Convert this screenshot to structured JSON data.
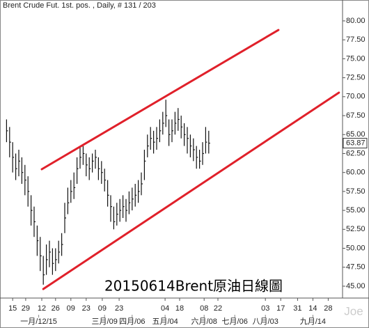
{
  "chart_data": {
    "type": "ohlc",
    "title": "Brent Crude Fut. 1st. pos. , Daily, # 131 / 203",
    "annotation": "20150614Brent原油日線圖",
    "watermark": "Joe",
    "color": "#111111",
    "x": [
      2,
      4,
      6,
      8,
      10,
      12,
      14,
      16,
      18,
      20,
      22,
      24,
      26,
      28,
      30,
      32,
      34,
      36,
      38,
      40,
      42,
      44,
      46,
      48,
      50,
      52,
      54,
      56,
      58,
      60,
      62,
      64,
      66,
      68,
      70,
      72,
      74,
      76,
      78,
      80,
      82,
      84,
      86,
      88,
      90,
      92,
      94,
      96,
      98,
      100,
      102,
      104,
      106,
      108,
      110,
      112,
      114,
      116,
      118,
      120,
      122,
      124,
      126,
      128,
      130,
      132,
      134
    ],
    "high": [
      67,
      66,
      64,
      62.5,
      63,
      62,
      61,
      59.5,
      57,
      55.5,
      53,
      51.5,
      49,
      50.5,
      51,
      50,
      50,
      51,
      52,
      56,
      58,
      59,
      60,
      62,
      63.5,
      63.5,
      62.5,
      62,
      62.5,
      63,
      62,
      61.5,
      60.5,
      59,
      57,
      55.5,
      56,
      56.5,
      57,
      56.5,
      57.5,
      58,
      58.5,
      59,
      60,
      63,
      65,
      66,
      65.5,
      66,
      67,
      68,
      69.6,
      67,
      67,
      68,
      68.5,
      67.5,
      66.5,
      66,
      65,
      64.5,
      63.5,
      63,
      64,
      66,
      65.5
    ],
    "low": [
      64,
      62,
      60,
      59,
      59.5,
      58.5,
      57,
      55.5,
      53,
      51.5,
      49,
      47,
      45.2,
      46.5,
      47.5,
      46.5,
      47,
      48,
      49,
      52,
      54.5,
      56,
      56.5,
      58.5,
      60.5,
      61,
      59.5,
      59,
      60,
      60.5,
      59,
      58.5,
      57.5,
      55.5,
      53.5,
      52.5,
      53,
      53.5,
      54,
      53.5,
      54.5,
      55,
      55.5,
      56,
      57,
      59,
      62,
      63,
      62.5,
      63,
      64,
      65,
      66,
      63.5,
      64,
      65,
      65.5,
      64.5,
      63.5,
      62.5,
      62,
      61.5,
      60.5,
      60.5,
      61,
      62.5,
      62.5
    ],
    "close": [
      65.5,
      64,
      62,
      60.5,
      61.5,
      60,
      59,
      57.5,
      55,
      53.5,
      51,
      49,
      46.5,
      48.5,
      49.5,
      48,
      48.5,
      49.5,
      50.5,
      54,
      56,
      57.5,
      58,
      60.5,
      62,
      62.5,
      61,
      60.5,
      61.5,
      62,
      60.5,
      60,
      59,
      57,
      55.5,
      53.5,
      54.5,
      55,
      55.5,
      55,
      56,
      56.5,
      57,
      57.5,
      58.5,
      61.5,
      63.5,
      64.5,
      64,
      64.5,
      65.5,
      66.5,
      67.5,
      65,
      65.5,
      66.5,
      67,
      66,
      65,
      64.5,
      63.5,
      63,
      62,
      61.5,
      62.5,
      64,
      63.87
    ],
    "last_price": 63.87,
    "trendlines": [
      {
        "color": "#e0202a",
        "x": [
          25,
          179.5
        ],
        "y": [
          60.43,
          78.8
        ]
      },
      {
        "color": "#e0202a",
        "x": [
          26,
          219
        ],
        "y": [
          44.63,
          70.54
        ]
      }
    ],
    "xlim": [
      0,
      220.45
    ],
    "ylim": [
      43.71,
      82.57
    ],
    "xticks": [
      {
        "value": 6,
        "label": "15"
      },
      {
        "value": 14.5,
        "label": "29"
      },
      {
        "value": 25,
        "label": "12"
      },
      {
        "value": 34,
        "label": "26"
      },
      {
        "value": 44,
        "label": "09"
      },
      {
        "value": 54,
        "label": "23"
      },
      {
        "value": 64.5,
        "label": "09"
      },
      {
        "value": 75.5,
        "label": "23"
      },
      {
        "value": 105.5,
        "label": "04"
      },
      {
        "value": 115,
        "label": "18"
      },
      {
        "value": 131,
        "label": "08"
      },
      {
        "value": 140,
        "label": "22"
      },
      {
        "value": 171,
        "label": "03"
      },
      {
        "value": 181,
        "label": "17"
      },
      {
        "value": 192,
        "label": "31"
      },
      {
        "value": 202,
        "label": "14"
      },
      {
        "value": 212,
        "label": "28"
      }
    ],
    "xticks_secondary": [
      {
        "value": 23,
        "label": "一月/12/15"
      },
      {
        "value": 66,
        "label": "三月/09"
      },
      {
        "value": 84,
        "label": "四月/06"
      },
      {
        "value": 105.5,
        "label": "五月/04"
      },
      {
        "value": 131,
        "label": "六月/08"
      },
      {
        "value": 151,
        "label": "七月/06"
      },
      {
        "value": 171,
        "label": "八月/03"
      },
      {
        "value": 202,
        "label": "九月/14"
      }
    ],
    "yticks": [
      {
        "value": 45,
        "label": "45.00"
      },
      {
        "value": 47.5,
        "label": "47.50"
      },
      {
        "value": 50,
        "label": "50.00"
      },
      {
        "value": 52.5,
        "label": "52.50"
      },
      {
        "value": 55,
        "label": "55.00"
      },
      {
        "value": 57.5,
        "label": "57.50"
      },
      {
        "value": 60,
        "label": "60.00"
      },
      {
        "value": 62.5,
        "label": "62.50"
      },
      {
        "value": 65,
        "label": "65.00"
      },
      {
        "value": 67.5,
        "label": "67.50"
      },
      {
        "value": 70,
        "label": "70.00"
      },
      {
        "value": 72.5,
        "label": "72.50"
      },
      {
        "value": 75,
        "label": "75.00"
      },
      {
        "value": 77.5,
        "label": "77.50"
      },
      {
        "value": 80,
        "label": "80.00"
      }
    ]
  }
}
